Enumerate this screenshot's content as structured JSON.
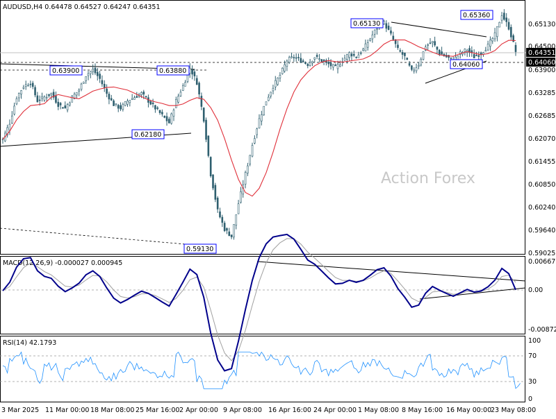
{
  "chart_data": [
    {
      "type": "candlestick",
      "panel": "price",
      "symbol": "AUDUSD",
      "timeframe": "H4",
      "header": "AUDUSD,H4  0.64478 0.64527 0.64247 0.64351",
      "watermark": "Action Forex",
      "ylim": [
        0.589,
        0.656
      ],
      "y_ticks": [
        "0.65130",
        "0.64500",
        "0.63900",
        "0.63285",
        "0.62685",
        "0.62070",
        "0.61455",
        "0.60850",
        "0.60240",
        "0.59640",
        "0.59025"
      ],
      "last_price": "0.64351",
      "support_level": "0.64060",
      "annotations": [
        "0.65360",
        "0.65130",
        "0.63900",
        "0.63880",
        "0.62180",
        "0.59130",
        "0.64060"
      ],
      "colors": {
        "candle": "#2e5f6f",
        "ma": "#e0303a",
        "trendline": "#000000",
        "accent": "#0000ff",
        "last_price_line": "#c0c0c0"
      },
      "closes": [
        0.6195,
        0.624,
        0.631,
        0.634,
        0.635,
        0.63,
        0.631,
        0.632,
        0.629,
        0.628,
        0.631,
        0.633,
        0.637,
        0.6385,
        0.636,
        0.632,
        0.629,
        0.628,
        0.63,
        0.631,
        0.632,
        0.63,
        0.628,
        0.626,
        0.624,
        0.63,
        0.634,
        0.639,
        0.635,
        0.625,
        0.61,
        0.6,
        0.595,
        0.593,
        0.602,
        0.61,
        0.618,
        0.625,
        0.63,
        0.634,
        0.637,
        0.641,
        0.642,
        0.641,
        0.64,
        0.642,
        0.641,
        0.64,
        0.639,
        0.641,
        0.643,
        0.642,
        0.644,
        0.647,
        0.65,
        0.6513,
        0.648,
        0.644,
        0.642,
        0.638,
        0.64,
        0.645,
        0.646,
        0.643,
        0.642,
        0.641,
        0.643,
        0.644,
        0.642,
        0.643,
        0.645,
        0.648,
        0.6536,
        0.65,
        0.6435
      ]
    },
    {
      "type": "line",
      "panel": "MACD",
      "header": "MACD(12,26,9) -0.000027 0.000945",
      "ylim": [
        -0.008724,
        0.006675
      ],
      "y_ticks": [
        "0.006675",
        "0.00",
        "-0.008724"
      ],
      "series": [
        {
          "name": "MACD",
          "color": "#00008b"
        },
        {
          "name": "Signal",
          "color": "#a0a0a0"
        }
      ]
    },
    {
      "type": "line",
      "panel": "RSI",
      "header": "RSI(14) 42.1793",
      "ylim": [
        0,
        100
      ],
      "y_ticks": [
        "100",
        "70",
        "30",
        "0"
      ]
    }
  ],
  "x_labels": [
    "3 Mar 2025",
    "11 Mar 00:00",
    "18 Mar 08:00",
    "25 Mar 16:00",
    "2 Apr 00:00",
    "9 Apr 08:00",
    "16 Apr 16:00",
    "24 Apr 00:00",
    "1 May 08:00",
    "8 May 16:00",
    "16 May 00:00",
    "23 May 08:00"
  ]
}
